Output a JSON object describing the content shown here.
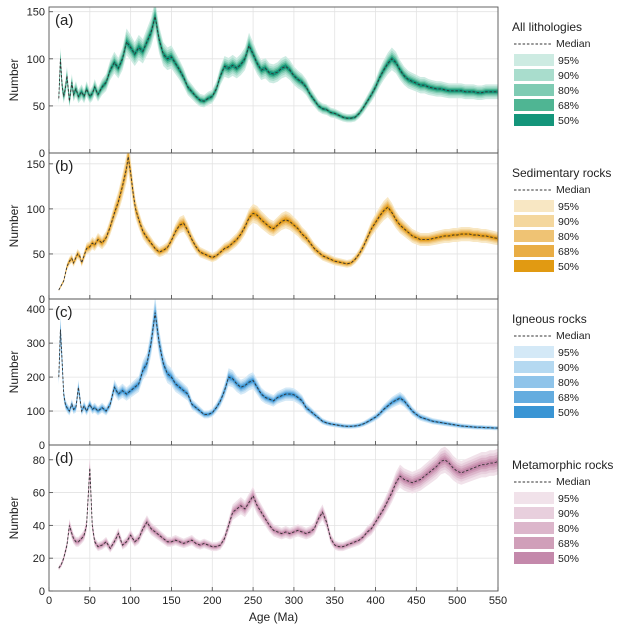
{
  "figure": {
    "xlabel": "Age (Ma)",
    "x_ticks": [
      0,
      50,
      100,
      150,
      200,
      250,
      300,
      350,
      400,
      450,
      500,
      550
    ],
    "legend_labels": [
      "Median",
      "95%",
      "90%",
      "80%",
      "68%",
      "50%"
    ]
  },
  "chart_data": [
    {
      "type": "line",
      "panel": "(a)",
      "title": "All lithologies",
      "ylabel": "Number",
      "xlim": [
        0,
        550
      ],
      "ylim": [
        0,
        155
      ],
      "y_ticks": [
        0,
        50,
        100,
        150
      ],
      "grid": true,
      "legend_position": "right",
      "color": "#1a9f7f",
      "band_colors": [
        "#cdebe2",
        "#a9ddcd",
        "#7fcbb3",
        "#4fb593",
        "#14957a"
      ],
      "band_fractions": [
        0.12,
        0.09,
        0.065,
        0.045,
        0.025
      ],
      "series": [
        {
          "name": "Median",
          "x": [
            12,
            14,
            16,
            18,
            20,
            22,
            25,
            28,
            30,
            33,
            36,
            40,
            43,
            46,
            50,
            53,
            56,
            60,
            65,
            70,
            75,
            80,
            85,
            90,
            95,
            100,
            105,
            110,
            115,
            120,
            125,
            130,
            135,
            140,
            145,
            150,
            155,
            160,
            165,
            170,
            175,
            180,
            185,
            190,
            195,
            200,
            205,
            210,
            215,
            220,
            225,
            230,
            235,
            240,
            245,
            250,
            255,
            260,
            265,
            270,
            275,
            280,
            285,
            290,
            295,
            300,
            305,
            310,
            315,
            320,
            325,
            330,
            335,
            340,
            345,
            350,
            355,
            360,
            365,
            370,
            375,
            380,
            385,
            390,
            395,
            400,
            405,
            410,
            415,
            420,
            425,
            430,
            435,
            440,
            445,
            450,
            455,
            460,
            465,
            470,
            475,
            480,
            485,
            490,
            495,
            500,
            505,
            510,
            515,
            520,
            525,
            530,
            535,
            540,
            545,
            550
          ],
          "y": [
            58,
            100,
            72,
            60,
            68,
            82,
            55,
            75,
            62,
            68,
            60,
            65,
            60,
            68,
            60,
            63,
            70,
            62,
            70,
            75,
            88,
            96,
            90,
            100,
            118,
            112,
            105,
            112,
            108,
            118,
            128,
            145,
            120,
            105,
            100,
            102,
            95,
            88,
            80,
            70,
            65,
            60,
            56,
            55,
            58,
            60,
            68,
            82,
            92,
            90,
            93,
            90,
            94,
            100,
            114,
            105,
            95,
            88,
            90,
            85,
            84,
            86,
            90,
            92,
            88,
            82,
            78,
            75,
            70,
            62,
            56,
            50,
            47,
            46,
            43,
            42,
            40,
            38,
            37,
            37,
            38,
            42,
            48,
            55,
            62,
            70,
            80,
            88,
            95,
            100,
            96,
            88,
            82,
            78,
            76,
            74,
            72,
            72,
            70,
            69,
            68,
            68,
            67,
            66,
            66,
            66,
            66,
            65,
            65,
            65,
            64,
            64,
            65,
            65,
            65,
            65
          ]
        }
      ]
    },
    {
      "type": "line",
      "panel": "(b)",
      "title": "Sedimentary rocks",
      "ylabel": "Number",
      "xlim": [
        0,
        550
      ],
      "ylim": [
        0,
        162
      ],
      "y_ticks": [
        0,
        50,
        100,
        150
      ],
      "grid": true,
      "legend_position": "right",
      "color": "#e3a020",
      "band_colors": [
        "#f8e7c3",
        "#f4d79e",
        "#efc374",
        "#e9ad45",
        "#e19a12"
      ],
      "band_fractions": [
        0.11,
        0.08,
        0.06,
        0.04,
        0.02
      ],
      "series": [
        {
          "name": "Median",
          "x": [
            12,
            15,
            18,
            20,
            22,
            25,
            28,
            30,
            33,
            35,
            38,
            40,
            43,
            46,
            50,
            53,
            56,
            60,
            65,
            70,
            75,
            80,
            85,
            90,
            95,
            97,
            100,
            103,
            106,
            110,
            115,
            120,
            125,
            130,
            135,
            140,
            145,
            150,
            155,
            160,
            165,
            170,
            175,
            180,
            185,
            190,
            195,
            200,
            205,
            210,
            215,
            220,
            225,
            230,
            235,
            240,
            245,
            250,
            255,
            260,
            265,
            270,
            275,
            280,
            285,
            290,
            295,
            300,
            305,
            310,
            315,
            320,
            325,
            330,
            335,
            340,
            345,
            350,
            355,
            360,
            365,
            370,
            375,
            380,
            385,
            390,
            395,
            400,
            405,
            410,
            415,
            420,
            425,
            430,
            435,
            440,
            445,
            450,
            455,
            460,
            465,
            470,
            475,
            480,
            485,
            490,
            495,
            500,
            505,
            510,
            515,
            520,
            525,
            530,
            535,
            540,
            545,
            550
          ],
          "y": [
            10,
            15,
            20,
            28,
            36,
            42,
            45,
            40,
            46,
            50,
            47,
            40,
            48,
            56,
            58,
            62,
            60,
            66,
            62,
            68,
            80,
            95,
            108,
            125,
            145,
            158,
            140,
            118,
            100,
            88,
            75,
            68,
            62,
            56,
            52,
            54,
            57,
            65,
            75,
            82,
            84,
            76,
            66,
            58,
            52,
            50,
            48,
            46,
            48,
            52,
            56,
            58,
            62,
            66,
            72,
            80,
            90,
            95,
            93,
            88,
            84,
            80,
            78,
            82,
            86,
            88,
            86,
            82,
            78,
            72,
            68,
            62,
            56,
            52,
            48,
            46,
            44,
            42,
            41,
            40,
            39,
            40,
            44,
            50,
            58,
            68,
            78,
            85,
            92,
            98,
            102,
            96,
            88,
            82,
            78,
            74,
            70,
            68,
            66,
            66,
            66,
            67,
            68,
            69,
            70,
            70,
            71,
            71,
            72,
            72,
            72,
            71,
            71,
            70,
            70,
            69,
            68,
            67
          ]
        }
      ]
    },
    {
      "type": "line",
      "panel": "(c)",
      "title": "Igneous rocks",
      "ylabel": "Number",
      "xlim": [
        0,
        550
      ],
      "ylim": [
        0,
        430
      ],
      "y_ticks": [
        0,
        100,
        200,
        300,
        400
      ],
      "grid": true,
      "legend_position": "right",
      "color": "#3a95d4",
      "band_colors": [
        "#d4e9f7",
        "#b5d9f1",
        "#8fc4ea",
        "#64acdf",
        "#3a95d4"
      ],
      "band_fractions": [
        0.13,
        0.095,
        0.07,
        0.045,
        0.025
      ],
      "series": [
        {
          "name": "Median",
          "x": [
            12,
            14,
            16,
            18,
            20,
            22,
            25,
            28,
            30,
            33,
            36,
            40,
            43,
            46,
            50,
            53,
            56,
            60,
            65,
            70,
            75,
            80,
            85,
            90,
            95,
            100,
            105,
            110,
            115,
            120,
            125,
            130,
            135,
            140,
            145,
            150,
            155,
            160,
            165,
            170,
            175,
            180,
            185,
            190,
            195,
            200,
            205,
            210,
            215,
            220,
            225,
            230,
            235,
            240,
            245,
            250,
            255,
            260,
            265,
            270,
            275,
            280,
            285,
            290,
            295,
            300,
            305,
            310,
            315,
            320,
            325,
            330,
            335,
            340,
            345,
            350,
            355,
            360,
            365,
            370,
            375,
            380,
            385,
            390,
            395,
            400,
            405,
            410,
            415,
            420,
            425,
            430,
            435,
            440,
            445,
            450,
            455,
            460,
            465,
            470,
            475,
            480,
            485,
            490,
            495,
            500,
            505,
            510,
            515,
            520,
            525,
            530,
            535,
            540,
            545,
            550
          ],
          "y": [
            200,
            340,
            250,
            150,
            120,
            110,
            100,
            120,
            105,
            110,
            170,
            100,
            115,
            100,
            120,
            105,
            110,
            100,
            110,
            100,
            120,
            170,
            150,
            160,
            150,
            160,
            170,
            180,
            220,
            240,
            300,
            390,
            300,
            240,
            210,
            200,
            180,
            170,
            160,
            150,
            120,
            110,
            100,
            90,
            90,
            95,
            110,
            130,
            160,
            200,
            195,
            180,
            170,
            175,
            185,
            190,
            170,
            150,
            140,
            135,
            130,
            140,
            145,
            150,
            150,
            148,
            140,
            130,
            110,
            100,
            90,
            80,
            70,
            65,
            62,
            60,
            58,
            56,
            55,
            55,
            56,
            58,
            62,
            68,
            75,
            82,
            92,
            105,
            115,
            125,
            132,
            138,
            130,
            115,
            100,
            90,
            82,
            78,
            74,
            70,
            68,
            66,
            64,
            62,
            60,
            58,
            56,
            55,
            54,
            53,
            52,
            52,
            51,
            51,
            50,
            50
          ]
        }
      ]
    },
    {
      "type": "line",
      "panel": "(d)",
      "title": "Metamorphic rocks",
      "ylabel": "Number",
      "xlim": [
        0,
        550
      ],
      "ylim": [
        0,
        89
      ],
      "y_ticks": [
        0,
        20,
        40,
        60,
        80
      ],
      "grid": true,
      "legend_position": "right",
      "color": "#c489ab",
      "band_colors": [
        "#f1e2ea",
        "#e8cfdd",
        "#dcb6cb",
        "#d09fb9",
        "#c489ab"
      ],
      "band_fractions": [
        0.1,
        0.075,
        0.055,
        0.035,
        0.02
      ],
      "series": [
        {
          "name": "Median",
          "x": [
            12,
            15,
            18,
            20,
            22,
            25,
            28,
            30,
            33,
            36,
            40,
            43,
            46,
            50,
            53,
            56,
            60,
            65,
            70,
            75,
            80,
            85,
            90,
            95,
            100,
            105,
            110,
            115,
            120,
            125,
            130,
            135,
            140,
            145,
            150,
            155,
            160,
            165,
            170,
            175,
            180,
            185,
            190,
            195,
            200,
            205,
            210,
            215,
            220,
            225,
            230,
            235,
            240,
            245,
            250,
            255,
            260,
            265,
            270,
            275,
            280,
            285,
            290,
            295,
            300,
            305,
            310,
            315,
            320,
            325,
            330,
            335,
            340,
            345,
            350,
            355,
            360,
            365,
            370,
            375,
            380,
            385,
            390,
            395,
            400,
            405,
            410,
            415,
            420,
            425,
            430,
            435,
            440,
            445,
            450,
            455,
            460,
            465,
            470,
            475,
            480,
            485,
            490,
            495,
            500,
            505,
            510,
            515,
            520,
            525,
            530,
            535,
            540,
            545,
            550
          ],
          "y": [
            14,
            16,
            20,
            24,
            28,
            40,
            35,
            32,
            30,
            30,
            32,
            34,
            40,
            75,
            40,
            30,
            27,
            28,
            30,
            26,
            30,
            35,
            28,
            30,
            34,
            30,
            32,
            38,
            42,
            38,
            36,
            34,
            32,
            30,
            30,
            31,
            30,
            29,
            30,
            31,
            29,
            28,
            29,
            28,
            27,
            27,
            28,
            32,
            40,
            48,
            50,
            52,
            50,
            54,
            58,
            52,
            48,
            44,
            40,
            37,
            36,
            35,
            36,
            35,
            36,
            37,
            36,
            35,
            36,
            38,
            44,
            48,
            42,
            32,
            28,
            27,
            27,
            28,
            29,
            30,
            31,
            33,
            36,
            38,
            42,
            46,
            50,
            55,
            60,
            66,
            70,
            68,
            67,
            66,
            67,
            68,
            70,
            72,
            74,
            76,
            79,
            80,
            78,
            75,
            73,
            72,
            73,
            74,
            75,
            76,
            77,
            77,
            78,
            78,
            79
          ]
        }
      ]
    }
  ]
}
